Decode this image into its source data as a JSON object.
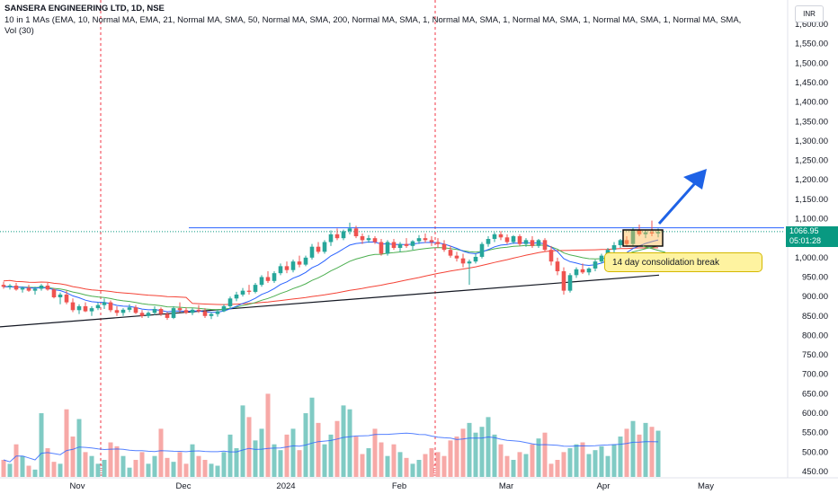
{
  "header": {
    "title": "SANSERA ENGINEERING LTD, 1D, NSE",
    "indicators": "10 in 1 MAs (EMA, 10, Normal MA, EMA, 21, Normal MA, SMA, 50, Normal MA, SMA, 200, Normal MA, SMA, 1, Normal MA, SMA, 1, Normal MA, SMA, 1, Normal MA, SMA, 1, Normal MA, SMA,",
    "volume": "Vol (30)"
  },
  "currency": "INR",
  "last_price": {
    "value": "1066.95",
    "countdown": "05:01:28"
  },
  "annotation": "14 day consolidation break",
  "earnings_marker": "E",
  "colors": {
    "up": "#26a69a",
    "down": "#ef5350",
    "vol_up": "#80cbc4",
    "vol_down": "#f7a9a7",
    "ema10": "#2962ff",
    "ema21": "#4caf50",
    "sma50": "#f44336",
    "sma200": "#131722"
  },
  "chart_data": {
    "type": "candlestick",
    "price_axis": {
      "range": [
        445,
        1625
      ],
      "ticks": [
        1600,
        1550,
        1500,
        1450,
        1400,
        1350,
        1300,
        1250,
        1200,
        1150,
        1100,
        1050,
        1000,
        950,
        900,
        850,
        800,
        750,
        700,
        650,
        600,
        550,
        500,
        450
      ],
      "tick_labels": [
        "1,600.00",
        "1,550.00",
        "1,500.00",
        "1,450.00",
        "1,400.00",
        "1,350.00",
        "1,300.00",
        "1,250.00",
        "1,200.00",
        "1,150.00",
        "1,100.00",
        "1,050.00",
        "1,000.00",
        "950.00",
        "900.00",
        "850.00",
        "800.00",
        "750.00",
        "700.00",
        "650.00",
        "600.00",
        "550.00",
        "500.00",
        "450.00"
      ]
    },
    "time_axis": [
      "Nov",
      "Dec",
      "2024",
      "Feb",
      "Mar",
      "Apr",
      "May"
    ],
    "resistance_level": 1072,
    "trendline": [
      [
        0,
        822
      ],
      [
        183,
        955
      ]
    ],
    "candles": [
      [
        930,
        938,
        920,
        925
      ],
      [
        925,
        932,
        918,
        928
      ],
      [
        928,
        935,
        915,
        918
      ],
      [
        918,
        926,
        910,
        922
      ],
      [
        922,
        930,
        912,
        915
      ],
      [
        915,
        925,
        905,
        920
      ],
      [
        920,
        932,
        915,
        928
      ],
      [
        928,
        935,
        915,
        918
      ],
      [
        918,
        922,
        895,
        898
      ],
      [
        898,
        910,
        880,
        905
      ],
      [
        905,
        915,
        880,
        885
      ],
      [
        885,
        895,
        860,
        865
      ],
      [
        865,
        880,
        855,
        875
      ],
      [
        875,
        885,
        860,
        862
      ],
      [
        862,
        875,
        850,
        870
      ],
      [
        870,
        885,
        865,
        878
      ],
      [
        878,
        895,
        868,
        885
      ],
      [
        885,
        890,
        860,
        865
      ],
      [
        865,
        875,
        850,
        858
      ],
      [
        858,
        870,
        850,
        866
      ],
      [
        866,
        880,
        860,
        872
      ],
      [
        872,
        878,
        855,
        858
      ],
      [
        858,
        865,
        845,
        850
      ],
      [
        850,
        862,
        845,
        858
      ],
      [
        858,
        875,
        852,
        868
      ],
      [
        868,
        872,
        850,
        855
      ],
      [
        855,
        860,
        840,
        845
      ],
      [
        845,
        875,
        842,
        870
      ],
      [
        870,
        885,
        860,
        865
      ],
      [
        865,
        872,
        855,
        858
      ],
      [
        858,
        870,
        852,
        866
      ],
      [
        866,
        878,
        858,
        862
      ],
      [
        862,
        870,
        845,
        850
      ],
      [
        850,
        860,
        842,
        855
      ],
      [
        855,
        866,
        848,
        862
      ],
      [
        862,
        880,
        860,
        875
      ],
      [
        875,
        900,
        870,
        895
      ],
      [
        895,
        912,
        888,
        905
      ],
      [
        905,
        922,
        900,
        915
      ],
      [
        915,
        930,
        905,
        912
      ],
      [
        912,
        935,
        908,
        930
      ],
      [
        930,
        955,
        925,
        950
      ],
      [
        950,
        965,
        935,
        940
      ],
      [
        940,
        965,
        935,
        960
      ],
      [
        960,
        985,
        955,
        978
      ],
      [
        978,
        990,
        960,
        968
      ],
      [
        968,
        995,
        962,
        990
      ],
      [
        990,
        1005,
        975,
        982
      ],
      [
        982,
        1005,
        978,
        1000
      ],
      [
        1000,
        1035,
        995,
        1028
      ],
      [
        1028,
        1040,
        1010,
        1015
      ],
      [
        1015,
        1045,
        1010,
        1040
      ],
      [
        1040,
        1070,
        1030,
        1060
      ],
      [
        1060,
        1075,
        1045,
        1050
      ],
      [
        1050,
        1072,
        1045,
        1068
      ],
      [
        1068,
        1090,
        1060,
        1075
      ],
      [
        1075,
        1082,
        1050,
        1055
      ],
      [
        1055,
        1062,
        1035,
        1045
      ],
      [
        1045,
        1058,
        1038,
        1050
      ],
      [
        1050,
        1055,
        1035,
        1040
      ],
      [
        1040,
        1048,
        1005,
        1010
      ],
      [
        1010,
        1045,
        1005,
        1040
      ],
      [
        1040,
        1048,
        1020,
        1025
      ],
      [
        1025,
        1040,
        1015,
        1035
      ],
      [
        1035,
        1050,
        1025,
        1030
      ],
      [
        1030,
        1045,
        1020,
        1042
      ],
      [
        1042,
        1058,
        1035,
        1050
      ],
      [
        1050,
        1062,
        1038,
        1045
      ],
      [
        1045,
        1055,
        1030,
        1040
      ],
      [
        1040,
        1050,
        1025,
        1035
      ],
      [
        1035,
        1045,
        1015,
        1020
      ],
      [
        1020,
        1030,
        1000,
        1005
      ],
      [
        1005,
        1015,
        990,
        998
      ],
      [
        998,
        1010,
        975,
        985
      ],
      [
        985,
        995,
        930,
        990
      ],
      [
        990,
        1010,
        985,
        1002
      ],
      [
        1002,
        1040,
        998,
        1035
      ],
      [
        1035,
        1055,
        1028,
        1048
      ],
      [
        1048,
        1065,
        1040,
        1060
      ],
      [
        1060,
        1068,
        1045,
        1052
      ],
      [
        1052,
        1060,
        1035,
        1040
      ],
      [
        1040,
        1058,
        1035,
        1055
      ],
      [
        1055,
        1060,
        1030,
        1035
      ],
      [
        1035,
        1050,
        1028,
        1045
      ],
      [
        1045,
        1055,
        1025,
        1030
      ],
      [
        1030,
        1048,
        1025,
        1045
      ],
      [
        1045,
        1050,
        1015,
        1020
      ],
      [
        1020,
        1030,
        980,
        990
      ],
      [
        990,
        1000,
        955,
        965
      ],
      [
        965,
        975,
        905,
        915
      ],
      [
        915,
        960,
        910,
        955
      ],
      [
        955,
        975,
        948,
        970
      ],
      [
        970,
        985,
        958,
        962
      ],
      [
        962,
        975,
        955,
        972
      ],
      [
        972,
        995,
        965,
        990
      ],
      [
        990,
        1010,
        985,
        1005
      ],
      [
        1005,
        1025,
        998,
        1020
      ],
      [
        1020,
        1040,
        1012,
        1032
      ],
      [
        1032,
        1048,
        1025,
        1045
      ],
      [
        1045,
        1055,
        1028,
        1035
      ],
      [
        1035,
        1078,
        1030,
        1072
      ],
      [
        1072,
        1085,
        1055,
        1060
      ],
      [
        1060,
        1070,
        1050,
        1065
      ],
      [
        1065,
        1095,
        1055,
        1062
      ],
      [
        1062,
        1075,
        1052,
        1066
      ]
    ],
    "volumes": [
      480,
      470,
      520,
      490,
      465,
      455,
      600,
      510,
      475,
      470,
      610,
      540,
      585,
      500,
      490,
      470,
      480,
      525,
      515,
      490,
      460,
      480,
      500,
      470,
      490,
      560,
      485,
      475,
      500,
      470,
      520,
      490,
      480,
      470,
      465,
      500,
      545,
      510,
      620,
      590,
      530,
      560,
      650,
      520,
      505,
      545,
      560,
      505,
      600,
      640,
      575,
      520,
      545,
      580,
      620,
      610,
      540,
      495,
      510,
      560,
      525,
      490,
      520,
      500,
      485,
      470,
      480,
      495,
      510,
      500,
      490,
      530,
      540,
      560,
      575,
      550,
      565,
      590,
      545,
      520,
      490,
      480,
      500,
      495,
      520,
      535,
      550,
      470,
      480,
      500,
      510,
      520,
      525,
      495,
      505,
      515,
      490,
      520,
      540,
      560,
      580,
      545,
      575,
      565,
      555
    ]
  }
}
